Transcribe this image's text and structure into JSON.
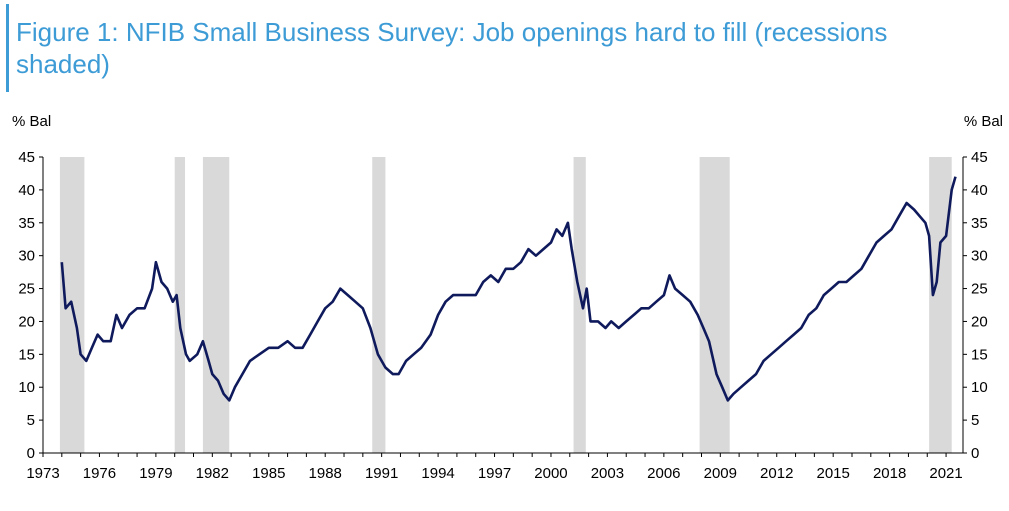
{
  "title": "Figure 1: NFIB Small Business Survey: Job openings hard to fill (recessions shaded)",
  "left_unit": "% Bal",
  "right_unit": "% Bal",
  "colors": {
    "title": "#3d9bd6",
    "line": "#0f1a5c",
    "recession": "#d9d9d9",
    "axis": "#000000"
  },
  "chart_data": {
    "type": "line",
    "title": "NFIB Small Business Survey: Job openings hard to fill",
    "ylabel": "% Bal",
    "ylim": [
      0,
      45
    ],
    "xlim": [
      1973,
      2021.9
    ],
    "y_ticks": [
      0,
      5,
      10,
      15,
      20,
      25,
      30,
      35,
      40,
      45
    ],
    "x_ticks": [
      1973,
      1976,
      1979,
      1982,
      1985,
      1988,
      1991,
      1994,
      1997,
      2000,
      2003,
      2006,
      2009,
      2012,
      2015,
      2018,
      2021
    ],
    "recessions": [
      [
        1973.9,
        1975.2
      ],
      [
        1980.0,
        1980.55
      ],
      [
        1981.5,
        1982.9
      ],
      [
        1990.5,
        1991.2
      ],
      [
        2001.2,
        2001.85
      ],
      [
        2007.9,
        2009.5
      ],
      [
        2020.1,
        2021.3
      ]
    ],
    "series": [
      {
        "name": "Job openings hard to fill",
        "points": [
          [
            1974.0,
            29
          ],
          [
            1974.2,
            22
          ],
          [
            1974.5,
            23
          ],
          [
            1974.8,
            19
          ],
          [
            1975.0,
            15
          ],
          [
            1975.3,
            14
          ],
          [
            1975.6,
            16
          ],
          [
            1975.9,
            18
          ],
          [
            1976.2,
            17
          ],
          [
            1976.6,
            17
          ],
          [
            1976.9,
            21
          ],
          [
            1977.2,
            19
          ],
          [
            1977.6,
            21
          ],
          [
            1978.0,
            22
          ],
          [
            1978.4,
            22
          ],
          [
            1978.8,
            25
          ],
          [
            1979.0,
            29
          ],
          [
            1979.3,
            26
          ],
          [
            1979.6,
            25
          ],
          [
            1979.9,
            23
          ],
          [
            1980.1,
            24
          ],
          [
            1980.3,
            19
          ],
          [
            1980.6,
            15
          ],
          [
            1980.8,
            14
          ],
          [
            1981.2,
            15
          ],
          [
            1981.5,
            17
          ],
          [
            1981.8,
            14
          ],
          [
            1982.0,
            12
          ],
          [
            1982.3,
            11
          ],
          [
            1982.6,
            9
          ],
          [
            1982.9,
            8
          ],
          [
            1983.2,
            10
          ],
          [
            1983.6,
            12
          ],
          [
            1984.0,
            14
          ],
          [
            1984.5,
            15
          ],
          [
            1985.0,
            16
          ],
          [
            1985.5,
            16
          ],
          [
            1986.0,
            17
          ],
          [
            1986.4,
            16
          ],
          [
            1986.8,
            16
          ],
          [
            1987.2,
            18
          ],
          [
            1987.6,
            20
          ],
          [
            1988.0,
            22
          ],
          [
            1988.4,
            23
          ],
          [
            1988.8,
            25
          ],
          [
            1989.2,
            24
          ],
          [
            1989.6,
            23
          ],
          [
            1990.0,
            22
          ],
          [
            1990.4,
            19
          ],
          [
            1990.8,
            15
          ],
          [
            1991.2,
            13
          ],
          [
            1991.6,
            12
          ],
          [
            1991.9,
            12
          ],
          [
            1992.3,
            14
          ],
          [
            1992.7,
            15
          ],
          [
            1993.1,
            16
          ],
          [
            1993.6,
            18
          ],
          [
            1994.0,
            21
          ],
          [
            1994.4,
            23
          ],
          [
            1994.8,
            24
          ],
          [
            1995.2,
            24
          ],
          [
            1995.6,
            24
          ],
          [
            1996.0,
            24
          ],
          [
            1996.4,
            26
          ],
          [
            1996.8,
            27
          ],
          [
            1997.2,
            26
          ],
          [
            1997.6,
            28
          ],
          [
            1998.0,
            28
          ],
          [
            1998.4,
            29
          ],
          [
            1998.8,
            31
          ],
          [
            1999.2,
            30
          ],
          [
            1999.6,
            31
          ],
          [
            2000.0,
            32
          ],
          [
            2000.3,
            34
          ],
          [
            2000.6,
            33
          ],
          [
            2000.9,
            35
          ],
          [
            2001.1,
            31
          ],
          [
            2001.4,
            26
          ],
          [
            2001.7,
            22
          ],
          [
            2001.9,
            25
          ],
          [
            2002.1,
            20
          ],
          [
            2002.5,
            20
          ],
          [
            2002.9,
            19
          ],
          [
            2003.2,
            20
          ],
          [
            2003.6,
            19
          ],
          [
            2004.0,
            20
          ],
          [
            2004.4,
            21
          ],
          [
            2004.8,
            22
          ],
          [
            2005.2,
            22
          ],
          [
            2005.6,
            23
          ],
          [
            2006.0,
            24
          ],
          [
            2006.3,
            27
          ],
          [
            2006.6,
            25
          ],
          [
            2007.0,
            24
          ],
          [
            2007.4,
            23
          ],
          [
            2007.8,
            21
          ],
          [
            2008.1,
            19
          ],
          [
            2008.4,
            17
          ],
          [
            2008.8,
            12
          ],
          [
            2009.1,
            10
          ],
          [
            2009.4,
            8
          ],
          [
            2009.7,
            9
          ],
          [
            2010.1,
            10
          ],
          [
            2010.5,
            11
          ],
          [
            2010.9,
            12
          ],
          [
            2011.3,
            14
          ],
          [
            2011.7,
            15
          ],
          [
            2012.1,
            16
          ],
          [
            2012.5,
            17
          ],
          [
            2012.9,
            18
          ],
          [
            2013.3,
            19
          ],
          [
            2013.7,
            21
          ],
          [
            2014.1,
            22
          ],
          [
            2014.5,
            24
          ],
          [
            2014.9,
            25
          ],
          [
            2015.3,
            26
          ],
          [
            2015.7,
            26
          ],
          [
            2016.1,
            27
          ],
          [
            2016.5,
            28
          ],
          [
            2016.9,
            30
          ],
          [
            2017.3,
            32
          ],
          [
            2017.7,
            33
          ],
          [
            2018.1,
            34
          ],
          [
            2018.5,
            36
          ],
          [
            2018.9,
            38
          ],
          [
            2019.3,
            37
          ],
          [
            2019.6,
            36
          ],
          [
            2019.9,
            35
          ],
          [
            2020.1,
            33
          ],
          [
            2020.3,
            24
          ],
          [
            2020.5,
            26
          ],
          [
            2020.7,
            32
          ],
          [
            2021.0,
            33
          ],
          [
            2021.3,
            40
          ],
          [
            2021.5,
            42
          ]
        ]
      }
    ]
  }
}
